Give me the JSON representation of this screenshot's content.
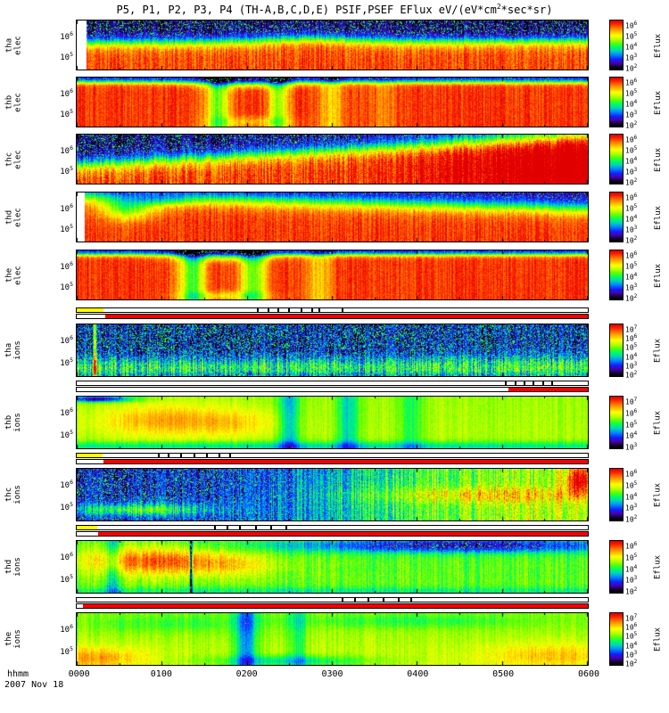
{
  "title": {
    "pre": "P5, P1, P2, P3, P4 (TH-A,B,C,D,E) PSIF,PSEF EFlux eV/(eV*cm",
    "sup": "2",
    "post": "*sec*sr)"
  },
  "xaxis": {
    "label": "hhmm",
    "date": "2007 Nov 18",
    "ticks": [
      "0000",
      "0100",
      "0200",
      "0300",
      "0400",
      "0500",
      "0600"
    ]
  },
  "palette": {
    "strip_yellow": "#ffff00",
    "strip_red": "#ff0000",
    "strip_dash": "#000000",
    "axis": "#000000"
  },
  "chart_data": {
    "type": "heatmap",
    "pow_base": "10",
    "x_range": [
      "0000",
      "0600"
    ],
    "x_span_hours": 6,
    "y_scale": "log energy (eV)",
    "value_label": "Eflux",
    "items": [
      {
        "kind": "panel",
        "probe": "tha",
        "species": "elec",
        "yticks": [
          {
            "e": "6",
            "p": 0.3
          },
          {
            "e": "5",
            "p": 0.72
          }
        ],
        "colorbar": {
          "label": "Eflux",
          "ticks": [
            "6",
            "5",
            "4",
            "3",
            "2"
          ]
        },
        "features": "dark speckled high energies above ~1e6, green-yellow mid band near 40% height, red below; small data gap at start",
        "render": {
          "seed": 11,
          "low": 0.06,
          "high": 0.9,
          "b0": 0.44,
          "b1": 0.4,
          "s": 0.07,
          "stripes": [],
          "blobs": [
            {
              "x": 0.45,
              "y": 0.4,
              "rx": 0.1,
              "ry": 0.14,
              "amp": 0.18
            },
            {
              "x": 0.8,
              "y": 0.3,
              "rx": 0.18,
              "ry": 0.1,
              "amp": -0.04
            }
          ],
          "noise": 0.1,
          "speckle": 0.3,
          "leadgap": 0.018
        }
      },
      {
        "kind": "panel",
        "probe": "thb",
        "species": "elec",
        "yticks": [
          {
            "e": "6",
            "p": 0.3
          },
          {
            "e": "5",
            "p": 0.72
          }
        ],
        "colorbar": {
          "label": "Eflux",
          "ticks": [
            "6",
            "5",
            "4",
            "3",
            "2"
          ]
        },
        "features": "mostly red, thin dark band at top, green vertical flux dropouts near 0130 and 0230",
        "render": {
          "seed": 22,
          "low": 0.15,
          "high": 0.92,
          "b0": 0.085,
          "b1": 0.085,
          "s": 0.03,
          "stripes": [
            {
              "x": 0.275,
              "w": 0.045,
              "amp": -0.38
            },
            {
              "x": 0.395,
              "w": 0.04,
              "amp": -0.33
            },
            {
              "x": 0.5,
              "w": 0.05,
              "amp": -0.18
            },
            {
              "x": 0.6,
              "w": 0.04,
              "amp": -0.1
            }
          ],
          "blobs": [
            {
              "x": 0.33,
              "y": 0.1,
              "rx": 0.09,
              "ry": 0.1,
              "amp": -0.25
            },
            {
              "x": 0.34,
              "y": 0.9,
              "rx": 0.07,
              "ry": 0.1,
              "amp": -0.15
            }
          ],
          "noise": 0.07,
          "speckle": 0.2,
          "leadgap": 0
        }
      },
      {
        "kind": "panel",
        "probe": "thc",
        "species": "elec",
        "yticks": [
          {
            "e": "6",
            "p": 0.3
          },
          {
            "e": "5",
            "p": 0.72
          }
        ],
        "colorbar": {
          "label": "Eflux",
          "ticks": [
            "6",
            "5",
            "4",
            "3",
            "2"
          ]
        },
        "features": "dark speckled upper-left region, diagonal boundary rising to the right, red lower band, teal upper-right",
        "render": {
          "seed": 33,
          "low": 0.06,
          "high": 0.9,
          "b0": 0.6,
          "b1": 0.02,
          "s": 0.09,
          "xsig": {
            "c": 0.78,
            "s": 0.1,
            "amp": 0.25
          },
          "stripes": [],
          "blobs": [],
          "noise": 0.12,
          "speckle": 0.32,
          "leadgap": 0
        }
      },
      {
        "kind": "panel",
        "probe": "thd",
        "species": "elec",
        "yticks": [
          {
            "e": "6",
            "p": 0.3
          },
          {
            "e": "5",
            "p": 0.72
          }
        ],
        "colorbar": {
          "label": "Eflux",
          "ticks": [
            "6",
            "5",
            "4",
            "3",
            "2"
          ]
        },
        "features": "red dominant, dark band widening to the right at top, green blob near 0030-0100",
        "render": {
          "seed": 44,
          "low": 0.1,
          "high": 0.92,
          "b0": 0.06,
          "b1": 0.32,
          "s": 0.09,
          "stripes": [],
          "blobs": [
            {
              "x": 0.1,
              "y": 0.3,
              "rx": 0.05,
              "ry": 0.22,
              "amp": -0.35
            },
            {
              "x": 0.17,
              "y": 0.15,
              "rx": 0.05,
              "ry": 0.1,
              "amp": -0.18
            }
          ],
          "noise": 0.08,
          "speckle": 0.25,
          "leadgap": 0.015
        }
      },
      {
        "kind": "panel",
        "probe": "the",
        "species": "elec",
        "yticks": [
          {
            "e": "6",
            "p": 0.3
          },
          {
            "e": "5",
            "p": 0.72
          }
        ],
        "colorbar": {
          "label": "Eflux",
          "ticks": [
            "6",
            "5",
            "4",
            "3",
            "2"
          ]
        },
        "features": "mostly red, thin dark band at top, strong green vertical dropouts near 0120 and 0200",
        "render": {
          "seed": 55,
          "low": 0.14,
          "high": 0.92,
          "b0": 0.075,
          "b1": 0.075,
          "s": 0.028,
          "stripes": [
            {
              "x": 0.225,
              "w": 0.05,
              "amp": -0.42
            },
            {
              "x": 0.345,
              "w": 0.05,
              "amp": -0.38
            },
            {
              "x": 0.47,
              "w": 0.05,
              "amp": -0.18
            }
          ],
          "blobs": [
            {
              "x": 0.285,
              "y": 0.1,
              "rx": 0.09,
              "ry": 0.1,
              "amp": -0.28
            },
            {
              "x": 0.29,
              "y": 0.92,
              "rx": 0.07,
              "ry": 0.08,
              "amp": -0.18
            }
          ],
          "noise": 0.07,
          "speckle": 0.2,
          "leadgap": 0
        }
      },
      {
        "kind": "strip",
        "row1": {
          "yellow": [
            0,
            0.052
          ],
          "dashes": [
            0.355,
            0.375,
            0.395,
            0.415,
            0.44,
            0.46,
            0.475,
            0.52
          ]
        },
        "row2": {
          "red": [
            [
              0.055,
              1
            ]
          ]
        }
      },
      {
        "kind": "panel",
        "probe": "tha",
        "species": "ions",
        "yticks": [
          {
            "e": "6",
            "p": 0.3
          },
          {
            "e": "5",
            "p": 0.72
          }
        ],
        "colorbar": {
          "label": "Eflux",
          "ticks": [
            "7",
            "6",
            "5",
            "4",
            "3",
            "2"
          ]
        },
        "features": "dark purple speckled upper region, cyan-green band below ~65% height, orange vertical line near 0020",
        "render": {
          "seed": 66,
          "low": 0.07,
          "high": 0.5,
          "b0": 0.66,
          "b1": 0.62,
          "s": 0.07,
          "stripes": [
            {
              "x": 0.035,
              "w": 0.006,
              "amp": 0.6
            }
          ],
          "blobs": [
            {
              "x": 0.5,
              "y": 0.98,
              "rx": 1.0,
              "ry": 0.07,
              "amp": -0.18
            }
          ],
          "noise": 0.22,
          "speckle": 0.5,
          "leadgap": 0
        }
      },
      {
        "kind": "strip",
        "row1": {
          "yellow": null,
          "dashes": [
            0.84,
            0.858,
            0.876,
            0.894,
            0.912,
            0.93
          ]
        },
        "row2": {
          "red": [
            [
              0.845,
              1
            ]
          ]
        }
      },
      {
        "kind": "panel",
        "probe": "thb",
        "species": "ions",
        "yticks": [
          {
            "e": "6",
            "p": 0.3
          },
          {
            "e": "5",
            "p": 0.72
          }
        ],
        "colorbar": {
          "label": "Eflux",
          "ticks": [
            "7",
            "6",
            "5",
            "4",
            "3"
          ]
        },
        "features": "smooth yellow-green, orange enhancement 0030-0130, teal vertical bands near 0230 and 0310, cyan bottom edge",
        "render": {
          "seed": 77,
          "low": 0.58,
          "high": 0.62,
          "b0": 0.5,
          "b1": 0.5,
          "s": 0.4,
          "stripes": [
            {
              "x": 0.415,
              "w": 0.04,
              "amp": -0.25
            },
            {
              "x": 0.53,
              "w": 0.04,
              "amp": -0.22
            },
            {
              "x": 0.655,
              "w": 0.05,
              "amp": -0.12
            }
          ],
          "blobs": [
            {
              "x": 0.17,
              "y": 0.45,
              "rx": 0.12,
              "ry": 0.28,
              "amp": 0.2
            },
            {
              "x": 0.32,
              "y": 0.5,
              "rx": 0.08,
              "ry": 0.25,
              "amp": 0.1
            },
            {
              "x": 0.5,
              "y": 0.96,
              "rx": 1.0,
              "ry": 0.09,
              "amp": -0.22
            },
            {
              "x": 0.04,
              "y": 0.04,
              "rx": 0.06,
              "ry": 0.05,
              "amp": -0.5
            }
          ],
          "noise": 0.05,
          "speckle": 0.05,
          "leadgap": 0
        }
      },
      {
        "kind": "strip",
        "row1": {
          "yellow": [
            0,
            0.05
          ],
          "dashes": [
            0.16,
            0.18,
            0.205,
            0.23,
            0.255,
            0.28,
            0.3
          ]
        },
        "row2": {
          "red": [
            [
              0.052,
              1
            ]
          ]
        }
      },
      {
        "kind": "panel",
        "probe": "thc",
        "species": "ions",
        "yticks": [
          {
            "e": "6",
            "p": 0.3
          },
          {
            "e": "5",
            "p": 0.72
          }
        ],
        "colorbar": {
          "label": "Eflux",
          "ticks": [
            "6",
            "5",
            "4",
            "3",
            "2"
          ]
        },
        "features": "dark speckled left half with green band lower-left, transition to green-yellow right half, red spot at far right top",
        "render": {
          "seed": 88,
          "low": 0.08,
          "high": 0.14,
          "b0": 0.5,
          "b1": 0.5,
          "s": 0.5,
          "xsig": {
            "c": 0.52,
            "s": 0.13,
            "amp": 0.52
          },
          "stripes": [],
          "blobs": [
            {
              "x": 0.12,
              "y": 0.78,
              "rx": 0.14,
              "ry": 0.12,
              "amp": 0.38
            },
            {
              "x": 0.78,
              "y": 0.5,
              "rx": 0.22,
              "ry": 0.14,
              "amp": 0.18
            },
            {
              "x": 0.985,
              "y": 0.2,
              "rx": 0.025,
              "ry": 0.25,
              "amp": 0.45
            }
          ],
          "noise": 0.16,
          "speckle": 0.45,
          "leadgap": 0
        }
      },
      {
        "kind": "strip",
        "row1": {
          "yellow": [
            0,
            0.04
          ],
          "dashes": [
            0.27,
            0.295,
            0.32,
            0.35,
            0.38,
            0.41
          ]
        },
        "row2": {
          "red": [
            [
              0.042,
              1
            ]
          ]
        }
      },
      {
        "kind": "panel",
        "probe": "thd",
        "species": "ions",
        "yticks": [
          {
            "e": "6",
            "p": 0.3
          },
          {
            "e": "5",
            "p": 0.72
          }
        ],
        "colorbar": {
          "label": "Eflux",
          "ticks": [
            "6",
            "5",
            "4",
            "3",
            "2"
          ]
        },
        "features": "green-yellow with red enhancement 0030-0200, dark speckled band along top right, thin data gap near 0120, cyan bottom",
        "render": {
          "seed": 99,
          "low": 0.52,
          "high": 0.56,
          "b0": 0.5,
          "b1": 0.5,
          "s": 0.4,
          "stripes": [
            {
              "x": 0.07,
              "w": 0.03,
              "amp": -0.18
            },
            {
              "x": 0.223,
              "w": 0.004,
              "amp": -0.9
            }
          ],
          "blobs": [
            {
              "x": 0.14,
              "y": 0.38,
              "rx": 0.12,
              "ry": 0.24,
              "amp": 0.32
            },
            {
              "x": 0.3,
              "y": 0.45,
              "rx": 0.1,
              "ry": 0.22,
              "amp": 0.16
            },
            {
              "x": 0.75,
              "y": 0.08,
              "rx": 0.3,
              "ry": 0.12,
              "amp": -0.42
            },
            {
              "x": 0.5,
              "y": 0.97,
              "rx": 1.0,
              "ry": 0.08,
              "amp": -0.12
            }
          ],
          "noise": 0.09,
          "speckle": 0.3,
          "leadgap": 0
        }
      },
      {
        "kind": "strip",
        "row1": {
          "yellow": null,
          "dashes": [
            0.52,
            0.545,
            0.57,
            0.6,
            0.63,
            0.655
          ]
        },
        "row2": {
          "red": [
            [
              0.012,
              1
            ]
          ]
        }
      },
      {
        "kind": "panel",
        "probe": "the",
        "species": "ions",
        "yticks": [
          {
            "e": "6",
            "p": 0.3
          },
          {
            "e": "5",
            "p": 0.72
          }
        ],
        "colorbar": {
          "label": "Eflux",
          "ticks": [
            "7",
            "6",
            "5",
            "4",
            "3",
            "2"
          ]
        },
        "features": "smooth yellow-green, teal vertical band near 0200, orange lower corners, cyan dip at bottom center",
        "render": {
          "seed": 110,
          "low": 0.55,
          "high": 0.66,
          "b0": 0.5,
          "b1": 0.5,
          "s": 0.35,
          "stripes": [
            {
              "x": 0.33,
              "w": 0.045,
              "amp": -0.3
            },
            {
              "x": 0.43,
              "w": 0.035,
              "amp": -0.15
            }
          ],
          "blobs": [
            {
              "x": 0.04,
              "y": 0.85,
              "rx": 0.08,
              "ry": 0.18,
              "amp": 0.18
            },
            {
              "x": 0.93,
              "y": 0.8,
              "rx": 0.12,
              "ry": 0.22,
              "amp": 0.14
            },
            {
              "x": 0.42,
              "y": 0.92,
              "rx": 0.14,
              "ry": 0.1,
              "amp": -0.22
            },
            {
              "x": 0.65,
              "y": 0.15,
              "rx": 0.2,
              "ry": 0.12,
              "amp": -0.1
            },
            {
              "x": 0.18,
              "y": 0.2,
              "rx": 0.15,
              "ry": 0.15,
              "amp": -0.08
            }
          ],
          "noise": 0.06,
          "speckle": 0.05,
          "leadgap": 0
        }
      }
    ]
  }
}
